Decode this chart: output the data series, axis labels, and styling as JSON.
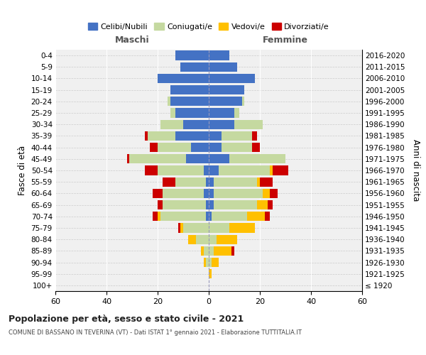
{
  "age_groups": [
    "100+",
    "95-99",
    "90-94",
    "85-89",
    "80-84",
    "75-79",
    "70-74",
    "65-69",
    "60-64",
    "55-59",
    "50-54",
    "45-49",
    "40-44",
    "35-39",
    "30-34",
    "25-29",
    "20-24",
    "15-19",
    "10-14",
    "5-9",
    "0-4"
  ],
  "birth_years": [
    "≤ 1920",
    "1921-1925",
    "1926-1930",
    "1931-1935",
    "1936-1940",
    "1941-1945",
    "1946-1950",
    "1951-1955",
    "1956-1960",
    "1961-1965",
    "1966-1970",
    "1971-1975",
    "1976-1980",
    "1981-1985",
    "1986-1990",
    "1991-1995",
    "1996-2000",
    "2001-2005",
    "2006-2010",
    "2011-2015",
    "2016-2020"
  ],
  "males": {
    "celibi": [
      0,
      0,
      0,
      0,
      0,
      0,
      1,
      1,
      2,
      1,
      2,
      9,
      7,
      13,
      10,
      13,
      15,
      15,
      20,
      11,
      13
    ],
    "coniugati": [
      0,
      0,
      1,
      2,
      5,
      10,
      18,
      17,
      16,
      12,
      18,
      22,
      13,
      11,
      9,
      2,
      1,
      0,
      0,
      0,
      0
    ],
    "vedovi": [
      0,
      0,
      1,
      1,
      3,
      1,
      1,
      0,
      0,
      0,
      0,
      0,
      0,
      0,
      0,
      0,
      0,
      0,
      0,
      0,
      0
    ],
    "divorziati": [
      0,
      0,
      0,
      0,
      0,
      1,
      2,
      2,
      4,
      5,
      5,
      1,
      3,
      1,
      0,
      0,
      0,
      0,
      0,
      0,
      0
    ]
  },
  "females": {
    "nubili": [
      0,
      0,
      0,
      0,
      0,
      0,
      1,
      2,
      2,
      2,
      4,
      8,
      5,
      5,
      10,
      10,
      13,
      14,
      18,
      11,
      8
    ],
    "coniugate": [
      0,
      0,
      1,
      2,
      3,
      8,
      14,
      17,
      19,
      17,
      20,
      22,
      12,
      12,
      11,
      2,
      1,
      0,
      0,
      0,
      0
    ],
    "vedove": [
      0,
      1,
      3,
      7,
      8,
      10,
      7,
      4,
      3,
      1,
      1,
      0,
      0,
      0,
      0,
      0,
      0,
      0,
      0,
      0,
      0
    ],
    "divorziate": [
      0,
      0,
      0,
      1,
      0,
      0,
      2,
      2,
      3,
      5,
      6,
      0,
      3,
      2,
      0,
      0,
      0,
      0,
      0,
      0,
      0
    ]
  },
  "colors": {
    "celibi": "#4472c4",
    "coniugati": "#c5d9a0",
    "vedovi": "#ffc000",
    "divorziati": "#cc0000"
  },
  "xlim": 60,
  "title1": "Popolazione per età, sesso e stato civile - 2021",
  "title2": "COMUNE DI BASSANO IN TEVERINA (VT) - Dati ISTAT 1° gennaio 2021 - Elaborazione TUTTITALIA.IT",
  "ylabel_left": "Fasce di età",
  "ylabel_right": "Anni di nascita",
  "legend_labels": [
    "Celibi/Nubili",
    "Coniugati/e",
    "Vedovi/e",
    "Divorziati/e"
  ],
  "maschi_label": "Maschi",
  "femmine_label": "Femmine",
  "background_color": "#f0f0f0"
}
